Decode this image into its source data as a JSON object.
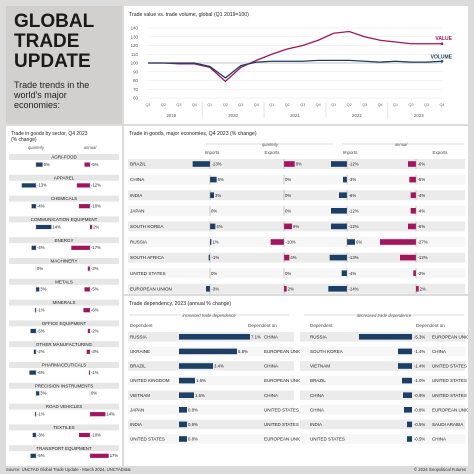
{
  "title": "GLOBAL\nTRADE\nUPDATE",
  "subtitle": "Trade trends in the world's major economies:",
  "colors": {
    "value": "#a3145e",
    "volume": "#1c3f63",
    "navy": "#1c3f63",
    "magenta": "#a3145e",
    "grey": "#bbbbbb"
  },
  "footer": {
    "source": "Source: UNCTAD Global Trade Update - March 2024, UNCTADstat",
    "copyright": "© 2024 Geopolitical Futures"
  },
  "chart_data": [
    {
      "type": "line",
      "title": "Trade value vs. trade volume, global (Q1 2019=100)",
      "ylim": [
        60,
        140
      ],
      "yticks": [
        60,
        70,
        80,
        90,
        100,
        110,
        120,
        130,
        140
      ],
      "quarter_labels": [
        "Q1",
        "Q2",
        "Q3",
        "Q4",
        "Q1",
        "Q2",
        "Q3",
        "Q4",
        "Q1",
        "Q2",
        "Q3",
        "Q4",
        "Q1",
        "Q2",
        "Q3",
        "Q4",
        "Q1",
        "Q2",
        "Q3",
        "Q4"
      ],
      "year_labels": [
        "2019",
        "2020",
        "2021",
        "2022",
        "2023"
      ],
      "series": [
        {
          "name": "VALUE",
          "color": "#a3145e",
          "values": [
            100,
            100,
            99,
            99,
            95,
            79,
            95,
            103,
            110,
            116,
            120,
            126,
            134,
            136,
            130,
            126,
            124,
            122,
            122,
            122
          ]
        },
        {
          "name": "VOLUME",
          "color": "#1c3f63",
          "values": [
            100,
            100,
            100,
            100,
            96,
            83,
            97,
            101,
            102,
            102,
            102,
            103,
            103,
            103,
            102,
            101,
            102,
            101,
            101,
            102
          ]
        }
      ]
    },
    {
      "type": "bar",
      "title": "Trade in goods by sector, Q4 2023 (% change)",
      "column_labels": [
        "quarterly",
        "annual"
      ],
      "xlim": [
        -20,
        20
      ],
      "categories": [
        "AGRI-FOOD",
        "APPAREL",
        "CHEMICALS",
        "COMMUNICATION EQUIPMENT",
        "ENERGY",
        "MACHINERY",
        "METALS",
        "MINERALS",
        "OFFICE EQUIPMENT",
        "OTHER MANUFACTURING",
        "PHARMACEUTICALS",
        "PRECISION INSTRUMENTS",
        "ROAD VEHICLES",
        "TEXTILES",
        "TRANSPORT EQUIPMENT"
      ],
      "series": [
        {
          "name": "quarterly",
          "values": [
            6,
            -13,
            -4,
            14,
            -4,
            0,
            3,
            -1,
            -5,
            -2,
            -6,
            3,
            -1,
            -3,
            -5
          ]
        },
        {
          "name": "annual",
          "values": [
            -5,
            -12,
            -10,
            2,
            -17,
            -2,
            -5,
            -6,
            -2,
            -3,
            -1,
            0,
            14,
            -10,
            17
          ]
        }
      ],
      "labels": {
        "quarterly": [
          "6%",
          "-13%",
          "-4%",
          "14%",
          "-4%",
          "0%",
          "3%",
          "-1%",
          "-5%",
          "-2%",
          "-6%",
          "3%",
          "-1%",
          "-3%",
          "-5%"
        ],
        "annual": [
          "-5%",
          "-12%",
          "-10%",
          "2%",
          "-17%",
          "-2%",
          "-5%",
          "-6%",
          "-2%",
          "-3%",
          "-1%",
          "0%",
          "14%",
          "-10%",
          "17%"
        ]
      }
    },
    {
      "type": "bar",
      "title": "Trade in goods, major economies, Q4 2023 (% change)",
      "group_labels": [
        "quarterly",
        "annual"
      ],
      "column_labels": [
        "Imports",
        "Exports",
        "Imports",
        "Exports"
      ],
      "xlim": [
        -30,
        30
      ],
      "categories": [
        "BRAZIL",
        "CHINA",
        "INDIA",
        "JAPAN",
        "SOUTH KOREA",
        "RUSSIA",
        "SOUTH AFRICA",
        "UNITED STATES",
        "EUROPEAN UNION"
      ],
      "series": [
        {
          "name": "quarterly imports",
          "values": [
            -13,
            5,
            3,
            0,
            4,
            1,
            -1,
            0,
            -3
          ],
          "labels": [
            "-13%",
            "5%",
            "3%",
            "0%",
            "4%",
            "1%",
            "-1%",
            "0%",
            "-3%"
          ]
        },
        {
          "name": "quarterly exports",
          "values": [
            8,
            0,
            0,
            0,
            6,
            -10,
            4,
            0,
            2
          ],
          "labels": [
            "8%",
            "0%",
            "0%",
            "0%",
            "6%",
            "-10%",
            "4%",
            "0%",
            "2%"
          ]
        },
        {
          "name": "annual imports",
          "values": [
            -12,
            -3,
            -6,
            -12,
            -12,
            6,
            -13,
            -4,
            -14
          ],
          "labels": [
            "-12%",
            "-3%",
            "-6%",
            "-12%",
            "-12%",
            "6%",
            "-13%",
            "-4%",
            "-14%"
          ]
        },
        {
          "name": "annual exports",
          "values": [
            -6,
            -5,
            -4,
            -4,
            -6,
            -27,
            -12,
            -2,
            2
          ],
          "labels": [
            "-6%",
            "-5%",
            "-4%",
            "-4%",
            "-6%",
            "-27%",
            "-12%",
            "-2%",
            "2%"
          ]
        }
      ]
    },
    {
      "type": "bar",
      "title": "Trade dependency, 2023 (annual % change)",
      "group_labels": [
        "increased trade dependence",
        "decreased trade dependence"
      ],
      "column_headers": [
        "Dependent",
        "Dependent on",
        "Dependent",
        "Dependent on"
      ],
      "xlim": [
        0,
        8
      ],
      "increased": [
        {
          "dependent": "RUSSIA",
          "value": 7.1,
          "label": "7.1%",
          "on": "CHINA"
        },
        {
          "dependent": "UKRAINE",
          "value": 5.8,
          "label": "5.8%",
          "on": "EUROPEAN UNION"
        },
        {
          "dependent": "BRAZIL",
          "value": 3.4,
          "label": "3.4%",
          "on": "CHINA"
        },
        {
          "dependent": "UNITED KINGDOM",
          "value": 1.6,
          "label": "1.6%",
          "on": "EUROPEAN UNION"
        },
        {
          "dependent": "VIETNAM",
          "value": 1.5,
          "label": "1.5%",
          "on": "CHINA"
        },
        {
          "dependent": "JAPAN",
          "value": 0.8,
          "label": "0.8%",
          "on": "UNITED STATES"
        },
        {
          "dependent": "INDIA",
          "value": 0.8,
          "label": "0.8%",
          "on": "UNITED STATES"
        },
        {
          "dependent": "UNITED STATES",
          "value": 0.8,
          "label": "0.8%",
          "on": "EUROPEAN UNION"
        }
      ],
      "decreased": [
        {
          "dependent": "RUSSIA",
          "value": -5.3,
          "label": "-5.3%",
          "on": "EUROPEAN UNION"
        },
        {
          "dependent": "SOUTH KOREA",
          "value": -1.4,
          "label": "-1.4%",
          "on": "CHINA"
        },
        {
          "dependent": "VIETNAM",
          "value": -1.4,
          "label": "-1.4%",
          "on": "UNITED STATES"
        },
        {
          "dependent": "BRAZIL",
          "value": -1.0,
          "label": "-1.0%",
          "on": "UNITED STATES"
        },
        {
          "dependent": "CHINA",
          "value": -0.9,
          "label": "-0.9%",
          "on": "UNITED STATES"
        },
        {
          "dependent": "CHINA",
          "value": -0.8,
          "label": "-0.8%",
          "on": "EUROPEAN UNION"
        },
        {
          "dependent": "INDIA",
          "value": -0.5,
          "label": "-0.5%",
          "on": "SAUDI ARABIA"
        },
        {
          "dependent": "UNITED STATES",
          "value": -0.5,
          "label": "-0.5%",
          "on": "CHINA"
        }
      ]
    }
  ]
}
